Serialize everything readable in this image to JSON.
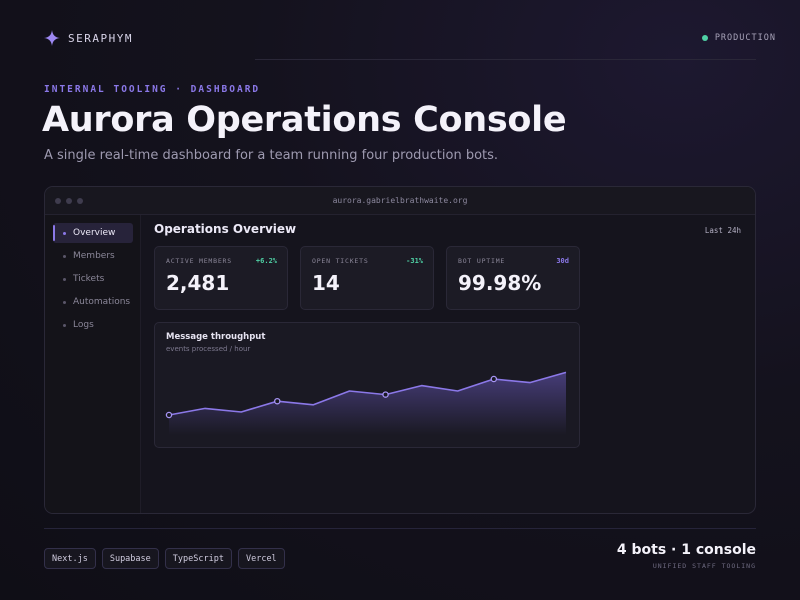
{
  "brand": {
    "name": "SERAPHYM",
    "icon": "sparkle-icon"
  },
  "environment": {
    "label": "PRODUCTION",
    "status_color": "#4fd1a5"
  },
  "hero": {
    "eyebrow": "INTERNAL TOOLING · DASHBOARD",
    "title": "Aurora Operations Console",
    "subtitle": "A single real-time dashboard for a team running four production bots."
  },
  "window": {
    "url": "aurora.gabrielbrathwaite.org"
  },
  "sidebar": {
    "items": [
      {
        "label": "Overview",
        "active": true
      },
      {
        "label": "Members",
        "active": false
      },
      {
        "label": "Tickets",
        "active": false
      },
      {
        "label": "Automations",
        "active": false
      },
      {
        "label": "Logs",
        "active": false
      }
    ]
  },
  "main": {
    "title": "Operations Overview",
    "range": "Last 24h",
    "cards": [
      {
        "label": "ACTIVE MEMBERS",
        "value": "2,481",
        "delta": "+6.2%",
        "delta_color": "#4fd1a5"
      },
      {
        "label": "OPEN TICKETS",
        "value": "14",
        "delta": "-31%",
        "delta_color": "#4fd1a5"
      },
      {
        "label": "BOT UPTIME",
        "value": "99.98%",
        "delta": "30d",
        "delta_color": "#8b78e8"
      }
    ]
  },
  "chart_data": {
    "type": "area",
    "title": "Message throughput",
    "subtitle": "events processed / hour",
    "x": [
      0,
      1,
      2,
      3,
      4,
      5,
      6,
      7,
      8,
      9,
      10,
      11
    ],
    "values": [
      0.2,
      0.31,
      0.25,
      0.43,
      0.37,
      0.6,
      0.54,
      0.69,
      0.6,
      0.8,
      0.74,
      0.91
    ],
    "markers": [
      0,
      3,
      6,
      9
    ],
    "ylim": [
      0,
      1
    ],
    "line_color": "#8b78e8",
    "grid": false
  },
  "tech": [
    "Next.js",
    "Supabase",
    "TypeScript",
    "Vercel"
  ],
  "summary": {
    "title": "4 bots · 1 console",
    "subtitle": "UNIFIED STAFF TOOLING"
  }
}
